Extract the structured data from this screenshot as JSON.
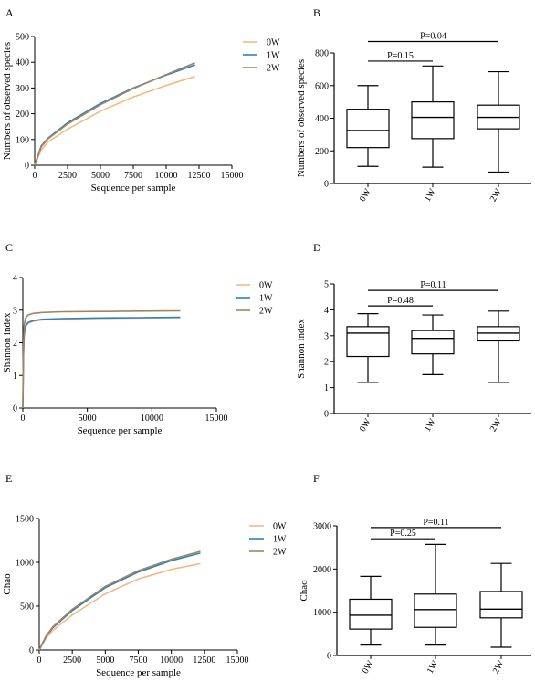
{
  "colors": {
    "0W": "#F4B97E",
    "1W": "#2B83BE",
    "2W": "#A08560"
  },
  "chart_data": [
    {
      "panel": "A",
      "type": "line",
      "xlabel": "Sequence per sample",
      "ylabel": "Numbers of observed species",
      "xlim": [
        0,
        15000
      ],
      "ylim": [
        0,
        500
      ],
      "xticks": [
        "0",
        "2500",
        "5000",
        "7500",
        "10000",
        "12500",
        "15000"
      ],
      "yticks": [
        "0",
        "100",
        "200",
        "300",
        "400",
        "500"
      ],
      "legend": "right",
      "series": [
        {
          "name": "0W",
          "x": [
            0,
            500,
            1000,
            2500,
            5000,
            7500,
            10000,
            12200
          ],
          "values": [
            0,
            60,
            90,
            140,
            210,
            265,
            310,
            345
          ]
        },
        {
          "name": "1W",
          "x": [
            0,
            500,
            1000,
            2500,
            5000,
            7500,
            10000,
            12200
          ],
          "values": [
            0,
            75,
            105,
            165,
            240,
            300,
            350,
            390
          ]
        },
        {
          "name": "2W",
          "x": [
            0,
            500,
            1000,
            2500,
            5000,
            7500,
            10000,
            12200
          ],
          "values": [
            0,
            72,
            102,
            160,
            235,
            298,
            352,
            398
          ]
        }
      ]
    },
    {
      "panel": "B",
      "type": "box",
      "xlabel": "",
      "ylabel": "Numbers of observed species",
      "ylim": [
        0,
        800
      ],
      "categories": [
        "0W",
        "1W",
        "2W"
      ],
      "yticks": [
        "0",
        "200",
        "400",
        "600",
        "800"
      ],
      "boxes": [
        {
          "min": 105,
          "q1": 220,
          "median": 325,
          "q3": 455,
          "max": 600
        },
        {
          "min": 100,
          "q1": 275,
          "median": 405,
          "q3": 500,
          "max": 720
        },
        {
          "min": 70,
          "q1": 335,
          "median": 405,
          "q3": 480,
          "max": 685
        }
      ],
      "annotations": [
        {
          "text": "P=0.15",
          "from": 0,
          "to": 1,
          "y": 750
        },
        {
          "text": "P=0.04",
          "from": 0,
          "to": 2,
          "y": 870
        }
      ]
    },
    {
      "panel": "C",
      "type": "line",
      "xlabel": "Sequence per sample",
      "ylabel": "Shannon index",
      "xlim": [
        0,
        15000
      ],
      "ylim": [
        0,
        4
      ],
      "xticks": [
        "0",
        "5000",
        "10000",
        "15000"
      ],
      "yticks": [
        "0",
        "1",
        "2",
        "3",
        "4"
      ],
      "legend": "right",
      "series": [
        {
          "name": "0W",
          "x": [
            0,
            50,
            100,
            200,
            400,
            800,
            1500,
            3000,
            6000,
            9000,
            12200
          ],
          "values": [
            0,
            1.6,
            2.2,
            2.48,
            2.6,
            2.66,
            2.7,
            2.73,
            2.75,
            2.76,
            2.77
          ]
        },
        {
          "name": "1W",
          "x": [
            0,
            50,
            100,
            200,
            400,
            800,
            1500,
            3000,
            6000,
            9000,
            12200
          ],
          "values": [
            0,
            1.6,
            2.25,
            2.5,
            2.62,
            2.68,
            2.72,
            2.74,
            2.76,
            2.77,
            2.78
          ]
        },
        {
          "name": "2W",
          "x": [
            0,
            50,
            100,
            200,
            400,
            800,
            1500,
            3000,
            6000,
            9000,
            12200
          ],
          "values": [
            0,
            1.9,
            2.5,
            2.75,
            2.85,
            2.9,
            2.93,
            2.95,
            2.96,
            2.97,
            2.98
          ]
        }
      ]
    },
    {
      "panel": "D",
      "type": "box",
      "xlabel": "",
      "ylabel": "Shannon index",
      "ylim": [
        0,
        5
      ],
      "categories": [
        "0W",
        "1W",
        "2W"
      ],
      "yticks": [
        "0",
        "1",
        "2",
        "3",
        "4",
        "5"
      ],
      "boxes": [
        {
          "min": 1.2,
          "q1": 2.2,
          "median": 3.1,
          "q3": 3.35,
          "max": 3.85
        },
        {
          "min": 1.5,
          "q1": 2.3,
          "median": 2.9,
          "q3": 3.2,
          "max": 3.8
        },
        {
          "min": 1.2,
          "q1": 2.8,
          "median": 3.1,
          "q3": 3.35,
          "max": 3.95
        }
      ],
      "annotations": [
        {
          "text": "P=0.48",
          "from": 0,
          "to": 1,
          "y": 4.15
        },
        {
          "text": "P=0.11",
          "from": 0,
          "to": 2,
          "y": 4.75
        }
      ]
    },
    {
      "panel": "E",
      "type": "line",
      "xlabel": "Sequence per sample",
      "ylabel": "Chao",
      "xlim": [
        0,
        15000
      ],
      "ylim": [
        0,
        1500
      ],
      "xticks": [
        "0",
        "2500",
        "5000",
        "7500",
        "10000",
        "12500",
        "15000"
      ],
      "yticks": [
        "0",
        "500",
        "1000",
        "1500"
      ],
      "legend": "right",
      "series": [
        {
          "name": "0W",
          "x": [
            0,
            500,
            1000,
            2500,
            5000,
            7500,
            10000,
            12200
          ],
          "values": [
            0,
            130,
            220,
            400,
            640,
            810,
            920,
            985
          ]
        },
        {
          "name": "1W",
          "x": [
            0,
            500,
            1000,
            2500,
            5000,
            7500,
            10000,
            12200
          ],
          "values": [
            0,
            150,
            250,
            450,
            710,
            890,
            1020,
            1105
          ]
        },
        {
          "name": "2W",
          "x": [
            0,
            500,
            1000,
            2500,
            5000,
            7500,
            10000,
            12200
          ],
          "values": [
            0,
            155,
            260,
            465,
            725,
            905,
            1035,
            1125
          ]
        }
      ]
    },
    {
      "panel": "F",
      "type": "box",
      "xlabel": "",
      "ylabel": "Chao",
      "ylim": [
        0,
        3000
      ],
      "categories": [
        "0W",
        "1W",
        "2W"
      ],
      "yticks": [
        "0",
        "1000",
        "2000",
        "3000"
      ],
      "boxes": [
        {
          "min": 240,
          "q1": 610,
          "median": 930,
          "q3": 1300,
          "max": 1830
        },
        {
          "min": 240,
          "q1": 650,
          "median": 1060,
          "q3": 1420,
          "max": 2570
        },
        {
          "min": 190,
          "q1": 870,
          "median": 1070,
          "q3": 1480,
          "max": 2130
        }
      ],
      "annotations": [
        {
          "text": "P=0.25",
          "from": 0,
          "to": 1,
          "y": 2700
        },
        {
          "text": "P=0.11",
          "from": 0,
          "to": 2,
          "y": 2960
        }
      ]
    }
  ]
}
